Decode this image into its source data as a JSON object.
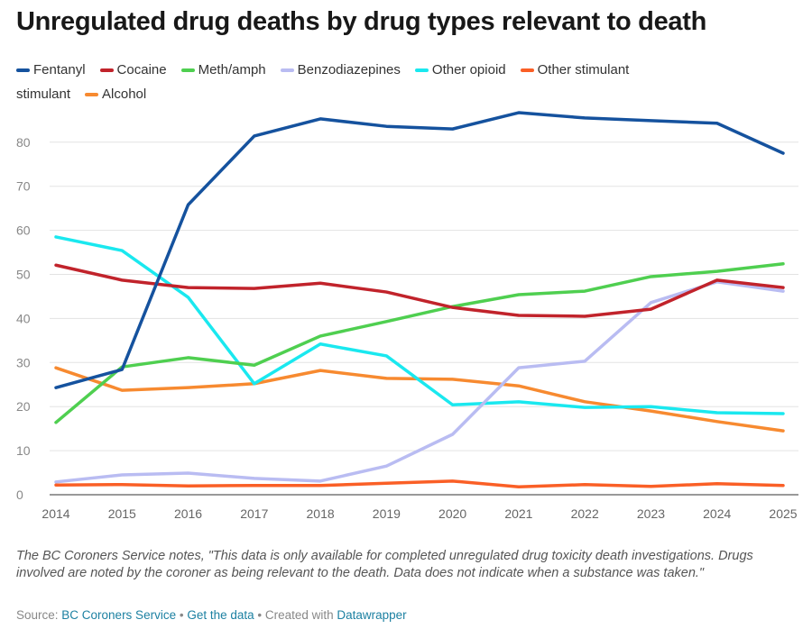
{
  "title": "Unregulated drug deaths by drug types relevant to death",
  "chart_data": {
    "type": "line",
    "title": "Unregulated drug deaths by drug types relevant to death",
    "x": [
      2014,
      2015,
      2016,
      2017,
      2018,
      2019,
      2020,
      2021,
      2022,
      2023,
      2024,
      2025
    ],
    "ylim": [
      0,
      80
    ],
    "yticks": [
      0,
      10,
      20,
      30,
      40,
      50,
      60,
      70,
      80
    ],
    "grid": true,
    "legend": "top",
    "legend_stray_text": "stimulant",
    "series": [
      {
        "name": "Fentanyl",
        "color": "#15529e",
        "values": [
          24.3,
          28.4,
          65.8,
          81.4,
          85.3,
          83.6,
          83.0,
          86.7,
          85.5,
          84.9,
          84.3,
          77.5
        ]
      },
      {
        "name": "Cocaine",
        "color": "#c1232b",
        "values": [
          52.1,
          48.7,
          47.0,
          46.8,
          48.0,
          46.0,
          42.5,
          40.7,
          40.5,
          42.1,
          48.7,
          47.0
        ]
      },
      {
        "name": "Meth/amph",
        "color": "#4fcf50",
        "values": [
          16.4,
          29.0,
          31.1,
          29.4,
          36.0,
          39.3,
          42.7,
          45.4,
          46.2,
          49.5,
          50.7,
          52.4
        ]
      },
      {
        "name": "Benzodiazepines",
        "color": "#b9bcf2",
        "values": [
          2.9,
          4.5,
          4.9,
          3.7,
          3.1,
          6.5,
          13.7,
          28.8,
          30.3,
          43.6,
          48.3,
          46.2
        ]
      },
      {
        "name": "Other opioid",
        "color": "#1ae8ef",
        "values": [
          58.5,
          55.4,
          44.8,
          25.2,
          34.2,
          31.5,
          20.4,
          21.1,
          19.8,
          20.0,
          18.6,
          18.4
        ]
      },
      {
        "name": "Other stimulant",
        "color": "#fa5f26",
        "values": [
          2.2,
          2.3,
          2.0,
          2.1,
          2.1,
          2.6,
          3.1,
          1.8,
          2.3,
          1.9,
          2.5,
          2.1
        ]
      },
      {
        "name": "Alcohol",
        "color": "#f78a30",
        "values": [
          28.8,
          23.7,
          24.3,
          25.2,
          28.2,
          26.4,
          26.2,
          24.7,
          21.1,
          19.0,
          16.6,
          14.5
        ]
      }
    ]
  },
  "note": "The BC Coroners Service notes, \"This data is only available for completed unregulated drug toxicity death investigations. Drugs involved are noted by the coroner as being relevant to the death. Data does not indicate when a substance was taken.\"",
  "source": {
    "prefix": "Source: ",
    "source_link": "BC Coroners Service",
    "sep1": " • ",
    "data_link": "Get the data",
    "sep2": " • Created with ",
    "dw_link": "Datawrapper"
  }
}
